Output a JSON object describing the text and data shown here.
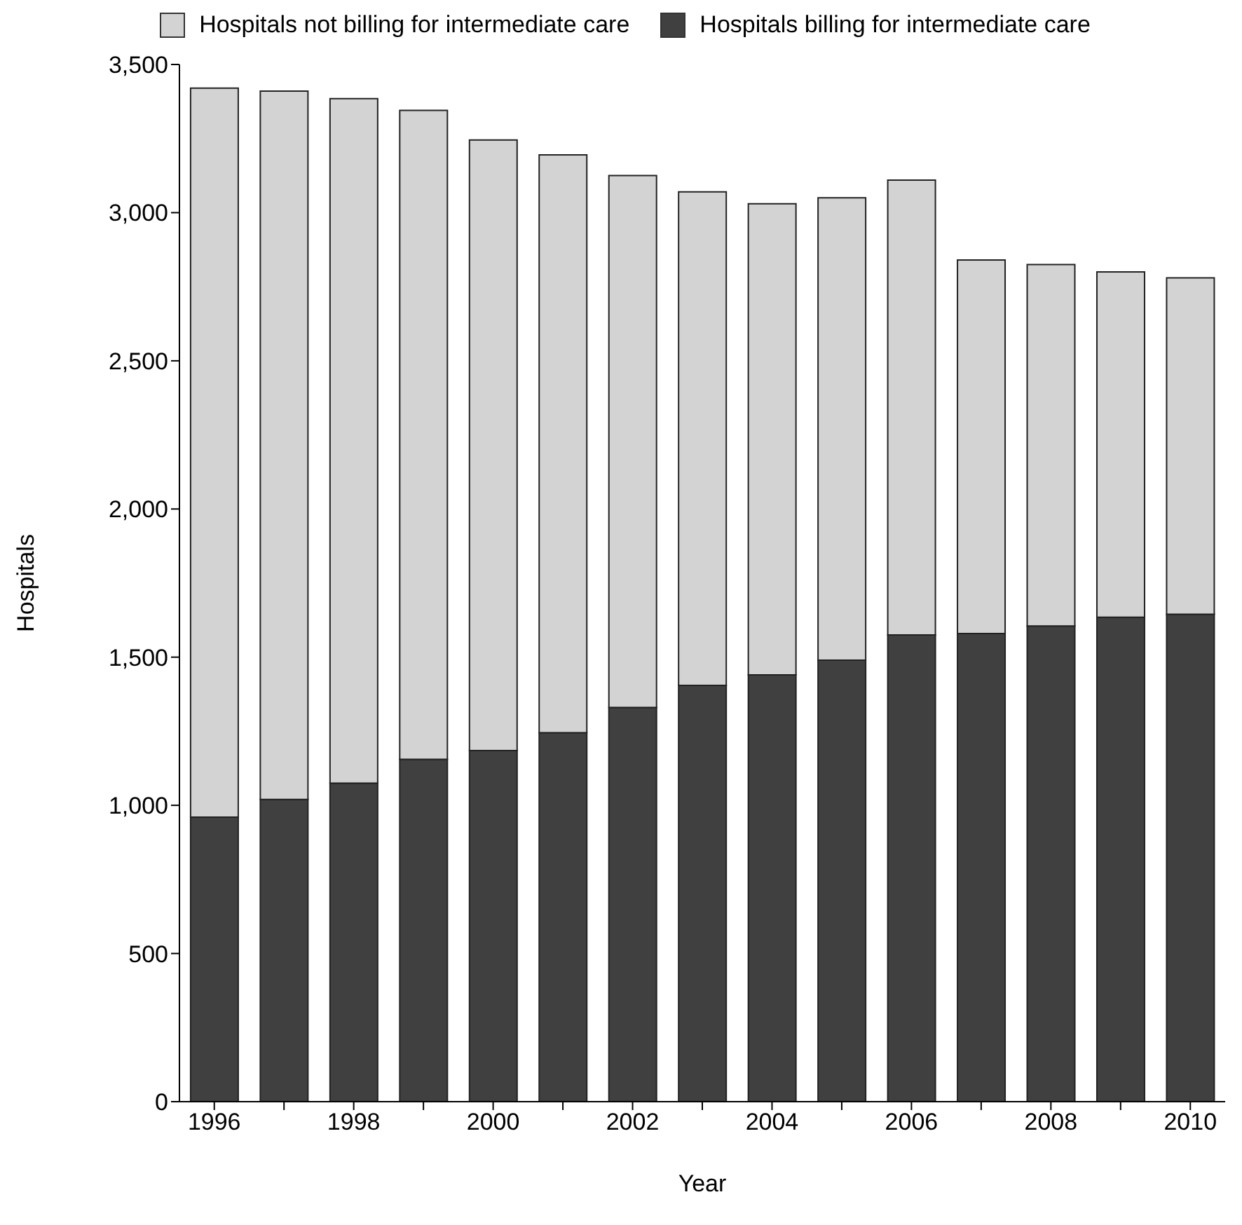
{
  "chart_data": {
    "type": "bar",
    "stacked": true,
    "xlabel": "Year",
    "ylabel": "Hospitals",
    "categories": [
      "1996",
      null,
      "1998",
      null,
      "2000",
      null,
      "2002",
      null,
      "2004",
      null,
      "2006",
      null,
      "2008",
      null,
      "2010"
    ],
    "series": [
      {
        "name": "Hospitals billing for intermediate care",
        "color": "#404040",
        "values": [
          960,
          1020,
          1075,
          1155,
          1185,
          1245,
          1330,
          1405,
          1440,
          1490,
          1575,
          1580,
          1605,
          1635,
          1645
        ]
      },
      {
        "name": "Hospitals not billing for intermediate care",
        "color": "#d3d3d3",
        "values": [
          2460,
          2390,
          2310,
          2190,
          2060,
          1950,
          1795,
          1665,
          1590,
          1560,
          1535,
          1260,
          1220,
          1165,
          1135
        ]
      }
    ],
    "ylim": [
      0,
      3500
    ],
    "yticks": [
      0,
      500,
      {
        "value": 1000,
        "label": "1,000"
      },
      {
        "value": 1500,
        "label": "1,500"
      },
      {
        "value": 2000,
        "label": "2,000"
      },
      {
        "value": 2500,
        "label": "2,500"
      },
      {
        "value": 3000,
        "label": "3,000"
      },
      {
        "value": 3500,
        "label": "3,500"
      }
    ],
    "grid": false,
    "legend": "top"
  }
}
